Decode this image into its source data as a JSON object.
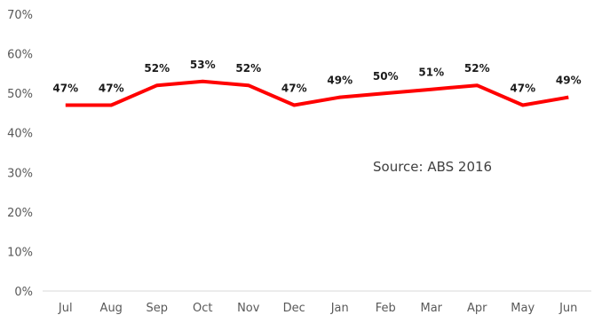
{
  "chart_data": {
    "type": "line",
    "categories": [
      "Jul",
      "Aug",
      "Sep",
      "Oct",
      "Nov",
      "Dec",
      "Jan",
      "Feb",
      "Mar",
      "Apr",
      "May",
      "Jun"
    ],
    "series": [
      {
        "values": [
          47,
          47,
          52,
          53,
          52,
          47,
          49,
          50,
          51,
          52,
          47,
          49
        ],
        "labels": [
          "47%",
          "47%",
          "52%",
          "53%",
          "52%",
          "47%",
          "49%",
          "50%",
          "51%",
          "52%",
          "47%",
          "49%"
        ],
        "color": "#ff0000"
      }
    ],
    "ylim": [
      0,
      70
    ],
    "yticks": [
      "0%",
      "10%",
      "20%",
      "30%",
      "40%",
      "50%",
      "60%",
      "70%"
    ],
    "grid": false,
    "legend": "none",
    "annotation": "Source: ABS 2016"
  }
}
